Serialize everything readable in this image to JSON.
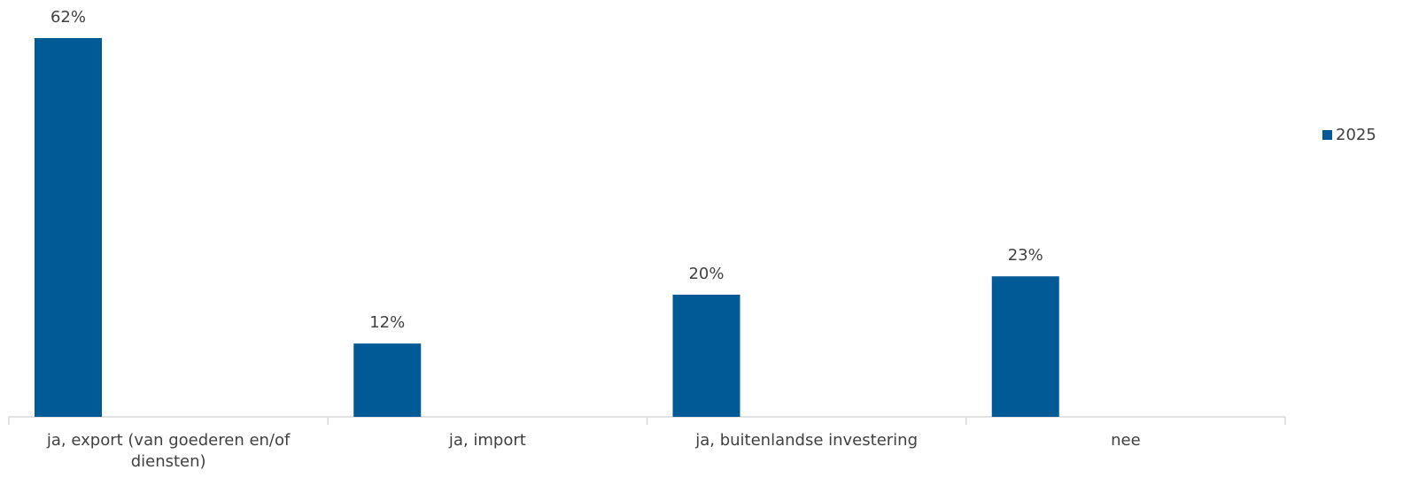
{
  "chart_data": {
    "type": "bar",
    "categories": [
      "ja, export (van goederen en/of diensten)",
      "ja, import",
      "ja, buitenlandse investering",
      "nee"
    ],
    "series": [
      {
        "name": "2025",
        "color": "#005a95",
        "values": [
          62,
          12,
          20,
          23
        ],
        "value_labels": [
          "62%",
          "12%",
          "20%",
          "23%"
        ]
      }
    ],
    "legend": "right"
  }
}
